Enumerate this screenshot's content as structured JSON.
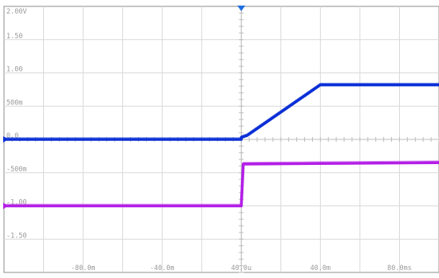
{
  "chart_data": {
    "type": "line",
    "title": "",
    "xlabel": "",
    "ylabel": "",
    "xlim": [
      -120,
      100
    ],
    "ylim": [
      -2.0,
      2.0
    ],
    "grid": true,
    "x_ticks": [
      {
        "value": -80,
        "label": "-80.0m"
      },
      {
        "value": -40,
        "label": "-40.0m"
      },
      {
        "value": 0,
        "label": "40.0u"
      },
      {
        "value": 40,
        "label": "40.0m"
      },
      {
        "value": 80,
        "label": "80.0ms"
      }
    ],
    "y_ticks": [
      {
        "value": 2.0,
        "label": "2.00V"
      },
      {
        "value": 1.5,
        "label": "1.50"
      },
      {
        "value": 1.0,
        "label": "1.00"
      },
      {
        "value": 0.5,
        "label": "500m"
      },
      {
        "value": 0.0,
        "label": "0.0"
      },
      {
        "value": -0.5,
        "label": "-500m"
      },
      {
        "value": -1.0,
        "label": "-1.00"
      },
      {
        "value": -1.5,
        "label": "-1.50"
      }
    ],
    "series": [
      {
        "color": "#0a2fd6",
        "x": [
          -120,
          0,
          0,
          3,
          40,
          100
        ],
        "y": [
          0.0,
          0.0,
          0.03,
          0.06,
          0.82,
          0.82
        ]
      },
      {
        "color": "#b31ee6",
        "x": [
          -120,
          0,
          1,
          100
        ],
        "y": [
          -1.0,
          -1.0,
          -0.37,
          -0.35
        ]
      }
    ],
    "trigger_x": 0
  }
}
